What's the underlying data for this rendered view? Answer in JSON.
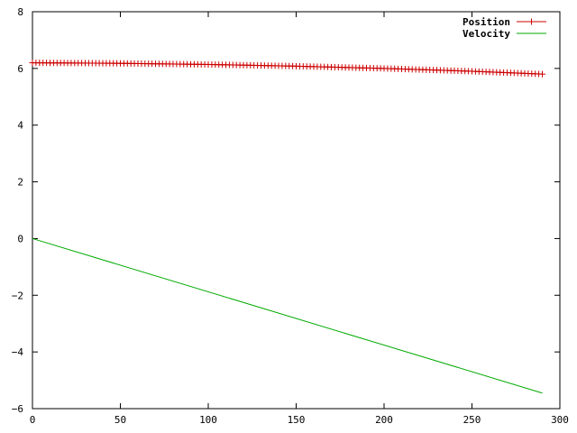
{
  "chart_data": {
    "type": "line",
    "title": "",
    "xlabel": "",
    "ylabel": "",
    "xlim": [
      0,
      300
    ],
    "ylim": [
      -6,
      8
    ],
    "x_ticks": [
      0,
      50,
      100,
      150,
      200,
      250,
      300
    ],
    "y_ticks": [
      -6,
      -4,
      -2,
      0,
      2,
      4,
      6,
      8
    ],
    "grid": false,
    "legend_position": "top-right",
    "series": [
      {
        "name": "Position",
        "color": "#cc0000",
        "marker": "plus",
        "x_start": 0,
        "x_end": 290,
        "x_step": 2,
        "points": [
          [
            0,
            6.2
          ],
          [
            50,
            6.18
          ],
          [
            100,
            6.14
          ],
          [
            150,
            6.08
          ],
          [
            200,
            6.0
          ],
          [
            250,
            5.9
          ],
          [
            290,
            5.8
          ]
        ]
      },
      {
        "name": "Velocity",
        "color": "#00aa00",
        "marker": "none",
        "points": [
          [
            0,
            0.0
          ],
          [
            290,
            -5.45
          ]
        ]
      }
    ]
  }
}
